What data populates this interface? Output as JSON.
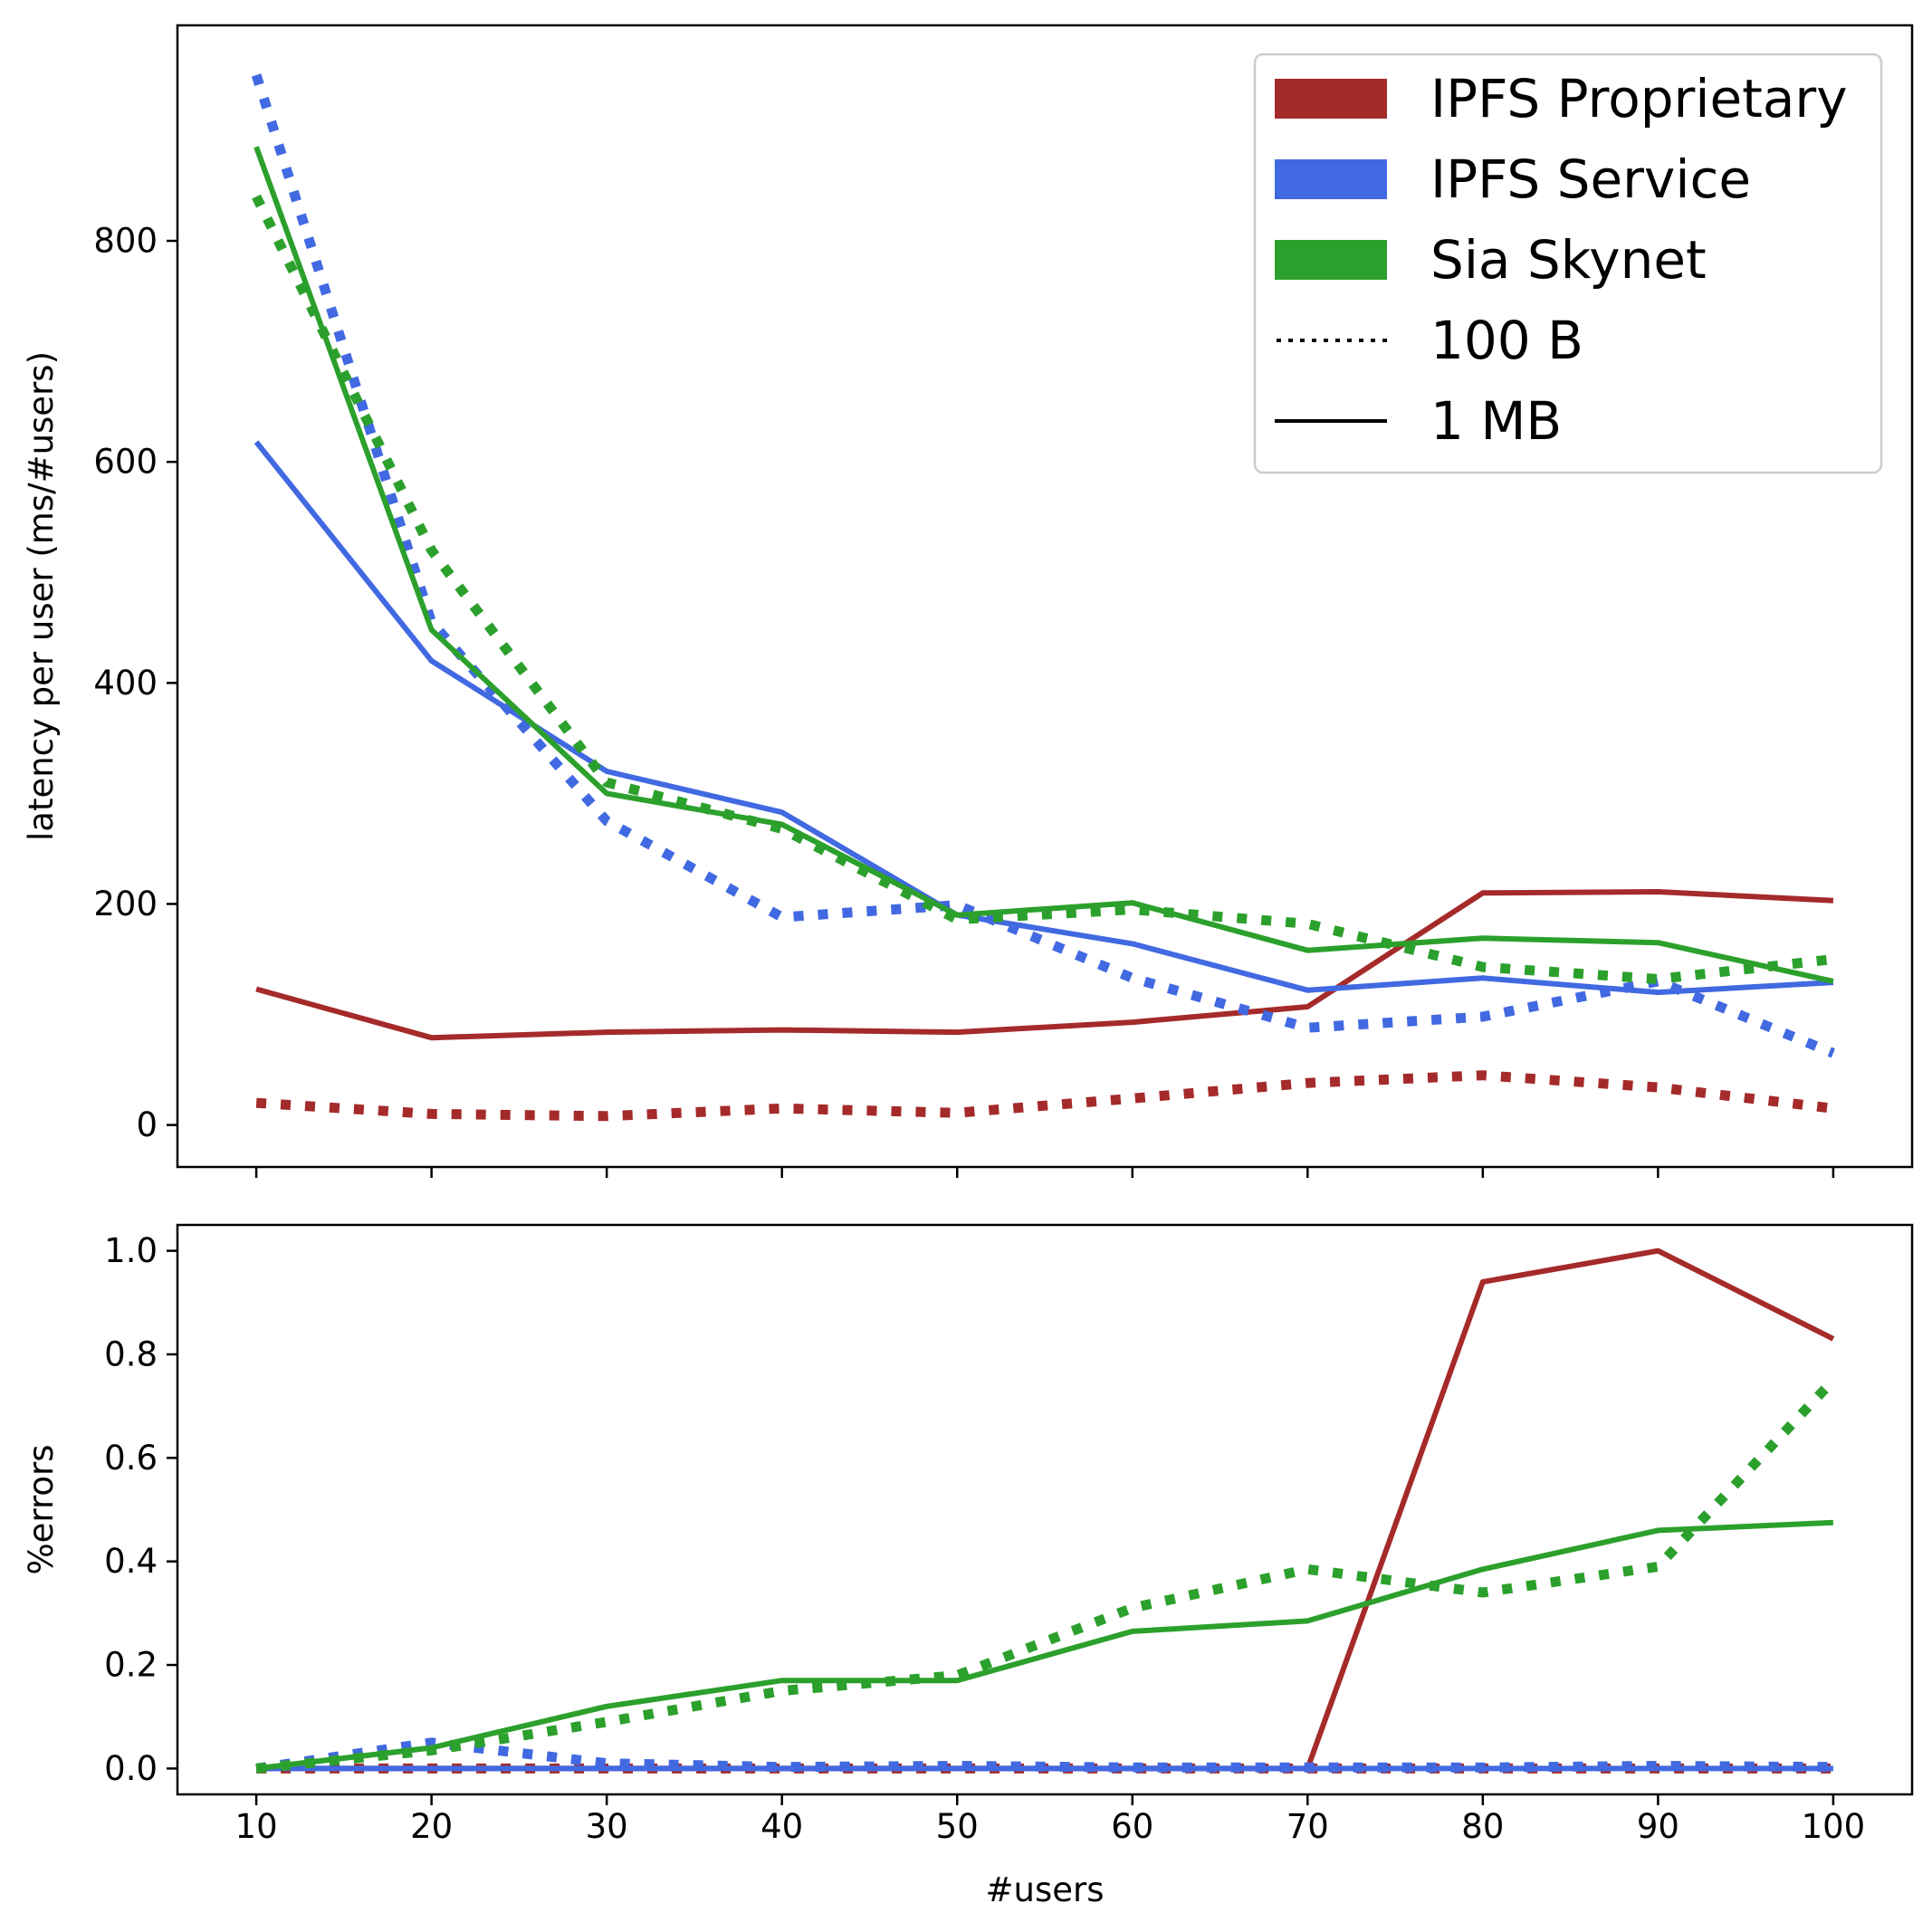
{
  "chart_data": [
    {
      "type": "line",
      "panel": "top",
      "title": "",
      "xlabel": "",
      "ylabel": "latency per user (ms/#users)",
      "x": [
        10,
        20,
        30,
        40,
        50,
        60,
        70,
        80,
        90,
        100
      ],
      "xlim": [
        5.5,
        104.5
      ],
      "ylim": [
        -38,
        995
      ],
      "yticks": [
        0,
        200,
        400,
        600,
        800
      ],
      "xticklabels_shown": false,
      "grid": false,
      "legend": {
        "placement": "top-right",
        "entries": [
          {
            "label": "IPFS Proprietary",
            "kind": "patch",
            "color": "#a52a2a"
          },
          {
            "label": "IPFS Service",
            "kind": "patch",
            "color": "#4169e1"
          },
          {
            "label": "Sia Skynet",
            "kind": "patch",
            "color": "#2ca02c"
          },
          {
            "label": "100 B",
            "kind": "line",
            "style": "dotted",
            "color": "#000000"
          },
          {
            "label": "1 MB",
            "kind": "line",
            "style": "solid",
            "color": "#000000"
          }
        ]
      },
      "series": [
        {
          "name": "IPFS Proprietary",
          "size": "1 MB",
          "style": "solid",
          "color": "#a52a2a",
          "values": [
            123,
            79,
            84,
            86,
            84,
            93,
            107,
            210,
            211,
            203
          ]
        },
        {
          "name": "IPFS Proprietary",
          "size": "100 B",
          "style": "dotted",
          "color": "#a52a2a",
          "values": [
            20,
            10,
            8,
            15,
            11,
            24,
            38,
            45,
            34,
            15
          ]
        },
        {
          "name": "IPFS Service",
          "size": "1 MB",
          "style": "solid",
          "color": "#4169e1",
          "values": [
            618,
            420,
            320,
            283,
            190,
            164,
            122,
            133,
            120,
            129
          ]
        },
        {
          "name": "IPFS Service",
          "size": "100 B",
          "style": "dotted",
          "color": "#4169e1",
          "values": [
            950,
            455,
            275,
            188,
            199,
            133,
            88,
            98,
            130,
            65
          ]
        },
        {
          "name": "Sia Skynet",
          "size": "1 MB",
          "style": "solid",
          "color": "#2ca02c",
          "values": [
            885,
            448,
            300,
            272,
            190,
            201,
            158,
            169,
            165,
            130
          ]
        },
        {
          "name": "Sia Skynet",
          "size": "100 B",
          "style": "dotted",
          "color": "#2ca02c",
          "values": [
            840,
            520,
            310,
            268,
            186,
            195,
            182,
            143,
            132,
            150
          ]
        }
      ]
    },
    {
      "type": "line",
      "panel": "bottom",
      "title": "",
      "xlabel": "#users",
      "ylabel": "%errors",
      "x": [
        10,
        20,
        30,
        40,
        50,
        60,
        70,
        80,
        90,
        100
      ],
      "xticks": [
        10,
        20,
        30,
        40,
        50,
        60,
        70,
        80,
        90,
        100
      ],
      "xlim": [
        5.5,
        104.5
      ],
      "ylim": [
        -0.05,
        1.05
      ],
      "yticks": [
        "0.0",
        "0.2",
        "0.4",
        "0.6",
        "0.8",
        "1.0"
      ],
      "grid": false,
      "series": [
        {
          "name": "IPFS Proprietary",
          "size": "100 B",
          "style": "dotted",
          "color": "#a52a2a",
          "values": [
            0,
            0,
            0,
            0,
            0,
            0,
            0,
            0,
            0,
            0
          ]
        },
        {
          "name": "IPFS Proprietary",
          "size": "1 MB",
          "style": "solid",
          "color": "#a52a2a",
          "values": [
            0,
            0,
            0,
            0,
            0,
            0,
            0,
            0.94,
            1.0,
            0.83
          ]
        },
        {
          "name": "IPFS Service",
          "size": "100 B",
          "style": "dotted",
          "color": "#4169e1",
          "values": [
            0,
            0.05,
            0.01,
            0.003,
            0.005,
            0.002,
            0.002,
            0.002,
            0.005,
            0.003
          ]
        },
        {
          "name": "IPFS Service",
          "size": "1 MB",
          "style": "solid",
          "color": "#4169e1",
          "values": [
            0,
            0,
            0,
            0,
            0,
            0,
            0,
            0,
            0,
            0
          ]
        },
        {
          "name": "Sia Skynet",
          "size": "100 B",
          "style": "dotted",
          "color": "#2ca02c",
          "values": [
            0,
            0.035,
            0.09,
            0.15,
            0.18,
            0.31,
            0.385,
            0.34,
            0.39,
            0.75
          ]
        },
        {
          "name": "Sia Skynet",
          "size": "1 MB",
          "style": "solid",
          "color": "#2ca02c",
          "values": [
            0,
            0.04,
            0.12,
            0.17,
            0.17,
            0.265,
            0.285,
            0.385,
            0.46,
            0.475
          ]
        }
      ]
    }
  ]
}
